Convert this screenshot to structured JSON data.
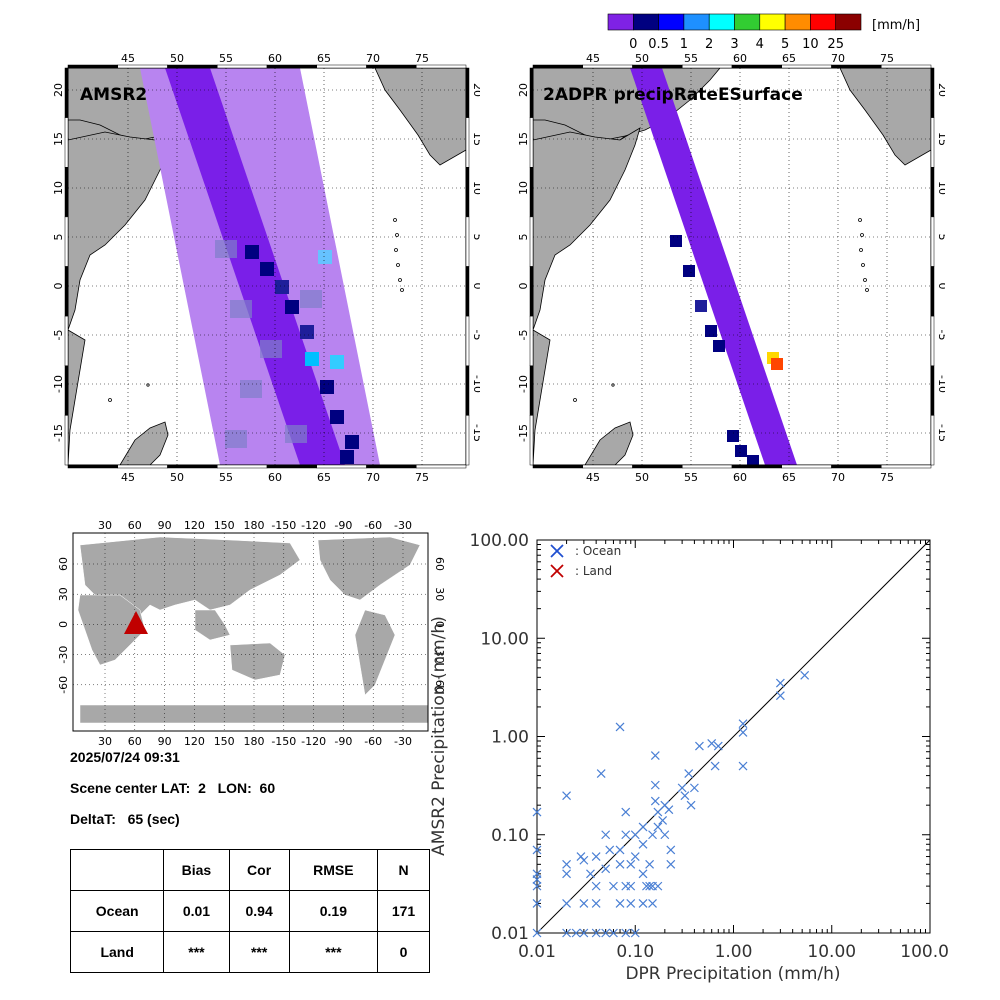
{
  "colorbar": {
    "unit": "[mm/h]",
    "labels": [
      "0",
      "0.5",
      "1",
      "2",
      "3",
      "4",
      "5",
      "10",
      "25"
    ],
    "colors": [
      "#7f22e5",
      "#000080",
      "#0000ff",
      "#1e90ff",
      "#00ffff",
      "#32cd32",
      "#ffff00",
      "#ff8c00",
      "#ff0000",
      "#8b0000"
    ]
  },
  "maps": {
    "lon_ticks": [
      "45",
      "50",
      "55",
      "60",
      "65",
      "70",
      "75"
    ],
    "lat_ticks": [
      "20",
      "15",
      "10",
      "5",
      "0",
      "-5",
      "-10",
      "-15"
    ],
    "amsr2_title": "AMSR2",
    "dpr_title": "2ADPR precipRateESurface",
    "land_color": "#a8a8a8"
  },
  "world_map": {
    "lon_ticks": [
      "30",
      "60",
      "90",
      "120",
      "150",
      "180",
      "-150",
      "-120",
      "-90",
      "-60",
      "-30"
    ],
    "lat_ticks_left": [
      "60",
      "30",
      "0",
      "-30",
      "-60"
    ],
    "lat_ticks_right": [
      "60",
      "30",
      "0",
      "-30",
      "-60"
    ],
    "marker_color": "#c00000"
  },
  "info": {
    "datetime": "2025/07/24 09:31",
    "scene_center": "Scene center LAT:  2   LON:  60",
    "delta_t": "DeltaT:   65 (sec)"
  },
  "stats": {
    "headers": [
      "",
      "Bias",
      "Cor",
      "RMSE",
      "N"
    ],
    "rows": [
      [
        "Ocean",
        "0.01",
        "0.94",
        "0.19",
        "171"
      ],
      [
        "Land",
        "***",
        "***",
        "***",
        "0"
      ]
    ]
  },
  "chart_data": {
    "type": "scatter",
    "xlabel": "DPR Precipitation (mm/h)",
    "ylabel": "AMSR2 Precipitation (mm/h)",
    "x_scale": "log",
    "y_scale": "log",
    "xlim": [
      0.01,
      100
    ],
    "ylim": [
      0.01,
      100
    ],
    "x_tick_labels": [
      "0.01",
      "0.10",
      "1.00",
      "10.00",
      "100.00"
    ],
    "y_tick_labels": [
      "0.01",
      "0.10",
      "1.00",
      "10.00",
      "100.00"
    ],
    "legend": [
      {
        "label": ": Ocean",
        "color": "#1f4fd0"
      },
      {
        "label": ": Land",
        "color": "#c00000"
      }
    ],
    "legend_position": "top-left",
    "reference_line": "1:1",
    "series": [
      {
        "name": "Ocean",
        "color": "#4a7fd4",
        "points": [
          [
            0.01,
            0.17
          ],
          [
            0.01,
            0.07
          ],
          [
            0.01,
            0.04
          ],
          [
            0.01,
            0.035
          ],
          [
            0.01,
            0.03
          ],
          [
            0.01,
            0.02
          ],
          [
            0.01,
            0.01
          ],
          [
            0.02,
            0.25
          ],
          [
            0.02,
            0.05
          ],
          [
            0.02,
            0.04
          ],
          [
            0.02,
            0.02
          ],
          [
            0.02,
            0.01
          ],
          [
            0.025,
            0.01
          ],
          [
            0.028,
            0.06
          ],
          [
            0.03,
            0.055
          ],
          [
            0.03,
            0.02
          ],
          [
            0.03,
            0.01
          ],
          [
            0.035,
            0.04
          ],
          [
            0.04,
            0.06
          ],
          [
            0.04,
            0.03
          ],
          [
            0.04,
            0.02
          ],
          [
            0.04,
            0.01
          ],
          [
            0.045,
            0.42
          ],
          [
            0.05,
            0.1
          ],
          [
            0.05,
            0.045
          ],
          [
            0.05,
            0.01
          ],
          [
            0.055,
            0.07
          ],
          [
            0.06,
            0.03
          ],
          [
            0.06,
            0.01
          ],
          [
            0.07,
            1.25
          ],
          [
            0.07,
            0.07
          ],
          [
            0.07,
            0.05
          ],
          [
            0.07,
            0.02
          ],
          [
            0.08,
            0.17
          ],
          [
            0.08,
            0.1
          ],
          [
            0.08,
            0.03
          ],
          [
            0.08,
            0.01
          ],
          [
            0.09,
            0.05
          ],
          [
            0.09,
            0.03
          ],
          [
            0.09,
            0.02
          ],
          [
            0.1,
            0.1
          ],
          [
            0.1,
            0.06
          ],
          [
            0.1,
            0.01
          ],
          [
            0.12,
            0.12
          ],
          [
            0.12,
            0.08
          ],
          [
            0.12,
            0.04
          ],
          [
            0.12,
            0.02
          ],
          [
            0.13,
            0.03
          ],
          [
            0.14,
            0.05
          ],
          [
            0.14,
            0.03
          ],
          [
            0.15,
            0.03
          ],
          [
            0.15,
            0.1
          ],
          [
            0.15,
            0.02
          ],
          [
            0.16,
            0.64
          ],
          [
            0.16,
            0.32
          ],
          [
            0.16,
            0.22
          ],
          [
            0.17,
            0.17
          ],
          [
            0.17,
            0.12
          ],
          [
            0.17,
            0.03
          ],
          [
            0.19,
            0.14
          ],
          [
            0.2,
            0.2
          ],
          [
            0.2,
            0.1
          ],
          [
            0.22,
            0.18
          ],
          [
            0.23,
            0.07
          ],
          [
            0.23,
            0.05
          ],
          [
            0.3,
            0.3
          ],
          [
            0.32,
            0.25
          ],
          [
            0.35,
            0.42
          ],
          [
            0.37,
            0.2
          ],
          [
            0.4,
            0.3
          ],
          [
            0.45,
            0.8
          ],
          [
            0.6,
            0.85
          ],
          [
            0.65,
            0.5
          ],
          [
            0.7,
            0.8
          ],
          [
            1.25,
            1.35
          ],
          [
            1.25,
            1.1
          ],
          [
            1.25,
            0.5
          ],
          [
            3.0,
            3.5
          ],
          [
            3.0,
            2.6
          ],
          [
            5.3,
            4.2
          ]
        ]
      },
      {
        "name": "Land",
        "color": "#c00000",
        "points": []
      }
    ]
  }
}
